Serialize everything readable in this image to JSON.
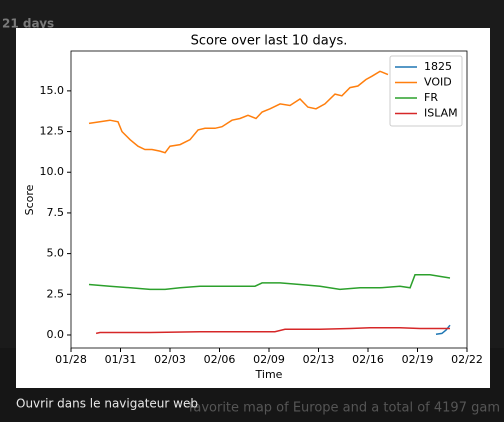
{
  "background": {
    "header": "21 days",
    "caption": "favorite map of Europe and a total of 4197 gam",
    "link": "Ouvrir dans le navigateur web"
  },
  "chart_data": {
    "type": "line",
    "title": "Score over last 10 days.",
    "x_label": "Time",
    "y_label": "Score",
    "xlim": [
      0,
      24
    ],
    "xticks": [
      {
        "value": 0,
        "label": "01/28"
      },
      {
        "value": 3,
        "label": "01/31"
      },
      {
        "value": 6,
        "label": "02/03"
      },
      {
        "value": 9,
        "label": "02/06"
      },
      {
        "value": 12,
        "label": "02/09"
      },
      {
        "value": 15,
        "label": "02/13"
      },
      {
        "value": 18,
        "label": "02/16"
      },
      {
        "value": 21,
        "label": "02/19"
      },
      {
        "value": 24,
        "label": "02/22"
      }
    ],
    "ylim": [
      -0.8,
      17.45
    ],
    "yticks": [
      {
        "value": 0,
        "label": "0.0"
      },
      {
        "value": 2.5,
        "label": "2.5"
      },
      {
        "value": 5,
        "label": "5.0"
      },
      {
        "value": 7.5,
        "label": "7.5"
      },
      {
        "value": 10,
        "label": "10.0"
      },
      {
        "value": 12.5,
        "label": "12.5"
      },
      {
        "value": 15,
        "label": "15.0"
      }
    ],
    "legend": "upper right",
    "series": [
      {
        "name": "1825",
        "color": "#1f77b4",
        "x": [
          22.12,
          22.48,
          22.73,
          22.97
        ],
        "values": [
          0.05,
          0.1,
          0.3,
          0.6
        ]
      },
      {
        "name": "VOID",
        "color": "#ff7f0e",
        "x": [
          1.09,
          1.76,
          2.36,
          2.85,
          3.09,
          3.58,
          4.06,
          4.48,
          4.91,
          5.39,
          5.7,
          6.0,
          6.61,
          7.21,
          7.7,
          8.12,
          8.73,
          9.15,
          9.76,
          10.24,
          10.73,
          11.21,
          11.58,
          12.06,
          12.67,
          13.27,
          13.88,
          14.36,
          14.85,
          15.39,
          16.0,
          16.42,
          16.91,
          17.39,
          17.88,
          18.24,
          18.73,
          19.21
        ],
        "values": [
          13.0,
          13.1,
          13.2,
          13.1,
          12.5,
          12.0,
          11.6,
          11.4,
          11.4,
          11.3,
          11.2,
          11.6,
          11.7,
          12.0,
          12.6,
          12.7,
          12.7,
          12.8,
          13.2,
          13.3,
          13.5,
          13.3,
          13.7,
          13.9,
          14.2,
          14.1,
          14.5,
          14.0,
          13.9,
          14.2,
          14.8,
          14.7,
          15.2,
          15.3,
          15.7,
          15.9,
          16.2,
          16.0
        ]
      },
      {
        "name": "FR",
        "color": "#2ca02c",
        "x": [
          1.09,
          2.36,
          3.58,
          4.79,
          5.7,
          6.61,
          7.82,
          9.03,
          10.24,
          11.15,
          11.58,
          12.67,
          13.88,
          15.09,
          16.3,
          17.52,
          18.73,
          19.94,
          20.55,
          20.85,
          21.76,
          22.36,
          22.97
        ],
        "values": [
          3.1,
          3.0,
          2.9,
          2.8,
          2.8,
          2.9,
          3.0,
          3.0,
          3.0,
          3.0,
          3.2,
          3.2,
          3.1,
          3.0,
          2.8,
          2.9,
          2.9,
          3.0,
          2.9,
          3.7,
          3.7,
          3.6,
          3.5
        ]
      },
      {
        "name": "ISLAM",
        "color": "#d62728",
        "x": [
          1.52,
          1.76,
          4.79,
          7.82,
          10.24,
          12.36,
          12.97,
          15.09,
          16.91,
          18.12,
          19.94,
          21.15,
          22.97
        ],
        "values": [
          0.1,
          0.15,
          0.15,
          0.2,
          0.2,
          0.2,
          0.35,
          0.35,
          0.4,
          0.45,
          0.45,
          0.4,
          0.4
        ]
      }
    ]
  }
}
